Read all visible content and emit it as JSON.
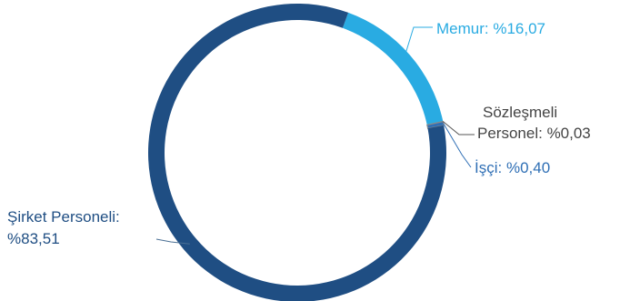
{
  "chart_data": {
    "type": "pie",
    "variant": "donut",
    "slices": [
      {
        "name": "Memur",
        "value": 16.07,
        "label_name": "Memur:",
        "label_value": "%16,07",
        "color": "#29abe2"
      },
      {
        "name": "Sözleşmeli Personel",
        "value": 0.03,
        "label_name": "Sözleşmeli",
        "label_name_2": "Personel:",
        "label_value": "%0,03",
        "color": "#666666"
      },
      {
        "name": "İşçi",
        "value": 0.4,
        "label_name": "İşçi:",
        "label_value": "%0,40",
        "color": "#2f6fb5"
      },
      {
        "name": "Şirket Personeli",
        "value": 83.51,
        "label_name": "Şirket Personeli:",
        "label_value": "%83,51",
        "color": "#1f4e83"
      }
    ],
    "label_colors": {
      "Memur": "#29abe2",
      "Sözleşmeli Personel": "#444444",
      "İşçi": "#2f6fb5",
      "Şirket Personeli": "#1f4e83"
    }
  }
}
